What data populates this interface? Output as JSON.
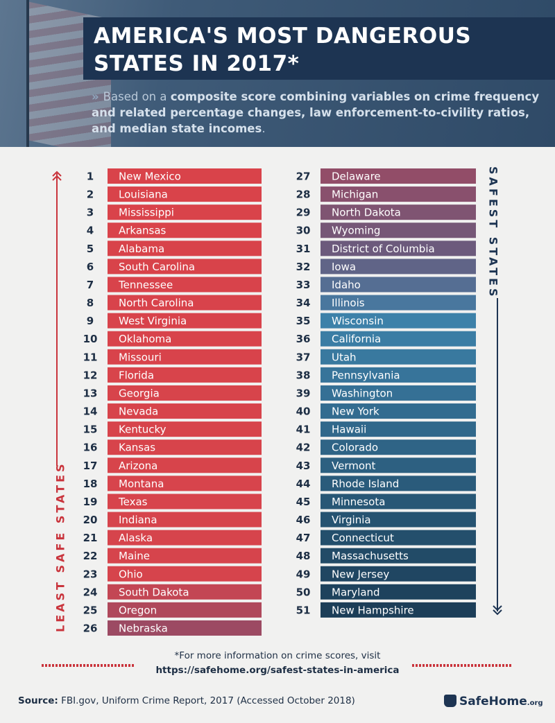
{
  "header": {
    "title": "AMERICA'S MOST DANGEROUS\nSTATES IN 2017*",
    "subtitle": {
      "lead": "Based on a",
      "bold": "composite score combining variables on crime frequency and related percentage  changes, law enforcement-to-civility ratios, and median state incomes",
      "end": "."
    }
  },
  "side_labels": {
    "left": "LEAST SAFE STATES",
    "right": "SAFEST STATES"
  },
  "ranking": [
    {
      "rank": 1,
      "state": "New Mexico"
    },
    {
      "rank": 2,
      "state": "Louisiana"
    },
    {
      "rank": 3,
      "state": "Mississippi"
    },
    {
      "rank": 4,
      "state": "Arkansas"
    },
    {
      "rank": 5,
      "state": "Alabama"
    },
    {
      "rank": 6,
      "state": "South Carolina"
    },
    {
      "rank": 7,
      "state": "Tennessee"
    },
    {
      "rank": 8,
      "state": "North Carolina"
    },
    {
      "rank": 9,
      "state": "West Virginia"
    },
    {
      "rank": 10,
      "state": "Oklahoma"
    },
    {
      "rank": 11,
      "state": "Missouri"
    },
    {
      "rank": 12,
      "state": "Florida"
    },
    {
      "rank": 13,
      "state": "Georgia"
    },
    {
      "rank": 14,
      "state": "Nevada"
    },
    {
      "rank": 15,
      "state": "Kentucky"
    },
    {
      "rank": 16,
      "state": "Kansas"
    },
    {
      "rank": 17,
      "state": "Arizona"
    },
    {
      "rank": 18,
      "state": "Montana"
    },
    {
      "rank": 19,
      "state": "Texas"
    },
    {
      "rank": 20,
      "state": "Indiana"
    },
    {
      "rank": 21,
      "state": "Alaska"
    },
    {
      "rank": 22,
      "state": "Maine"
    },
    {
      "rank": 23,
      "state": "Ohio"
    },
    {
      "rank": 24,
      "state": "South Dakota"
    },
    {
      "rank": 25,
      "state": "Oregon"
    },
    {
      "rank": 26,
      "state": "Nebraska"
    },
    {
      "rank": 27,
      "state": "Delaware"
    },
    {
      "rank": 28,
      "state": "Michigan"
    },
    {
      "rank": 29,
      "state": "North Dakota"
    },
    {
      "rank": 30,
      "state": "Wyoming"
    },
    {
      "rank": 31,
      "state": "District of Columbia"
    },
    {
      "rank": 32,
      "state": "Iowa"
    },
    {
      "rank": 33,
      "state": "Idaho"
    },
    {
      "rank": 34,
      "state": "Illinois"
    },
    {
      "rank": 35,
      "state": "Wisconsin"
    },
    {
      "rank": 36,
      "state": "California"
    },
    {
      "rank": 37,
      "state": "Utah"
    },
    {
      "rank": 38,
      "state": "Pennsylvania"
    },
    {
      "rank": 39,
      "state": "Washington"
    },
    {
      "rank": 40,
      "state": "New York"
    },
    {
      "rank": 41,
      "state": "Hawaii"
    },
    {
      "rank": 42,
      "state": "Colorado"
    },
    {
      "rank": 43,
      "state": "Vermont"
    },
    {
      "rank": 44,
      "state": "Rhode Island"
    },
    {
      "rank": 45,
      "state": "Minnesota"
    },
    {
      "rank": 46,
      "state": "Virginia"
    },
    {
      "rank": 47,
      "state": "Connecticut"
    },
    {
      "rank": 48,
      "state": "Massachusetts"
    },
    {
      "rank": 49,
      "state": "New Jersey"
    },
    {
      "rank": 50,
      "state": "Maryland"
    },
    {
      "rank": 51,
      "state": "New Hampshire"
    }
  ],
  "footer": {
    "note": "*For more information on crime scores, visit",
    "url": "https://safehome.org/safest-states-in-america",
    "source_label": "Source:",
    "source": "FBI.gov, Uniform Crime Report, 2017 (Accessed October 2018)",
    "logo": {
      "name": "SafeHome",
      "suffix": ".org"
    }
  }
}
